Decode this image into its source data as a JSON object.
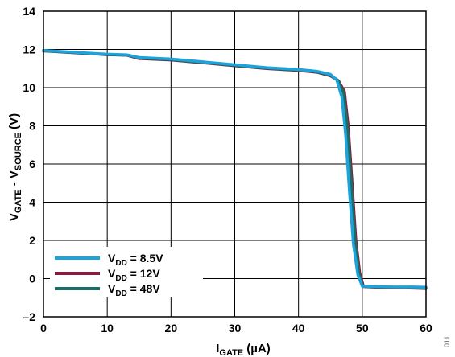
{
  "figure_id": "011",
  "chart_data": {
    "type": "line",
    "xlabel": {
      "main": "I",
      "sub": "GATE",
      "unit": " (µA)"
    },
    "ylabel": {
      "v1": "V",
      "s1": "GATE",
      "mid": " - V",
      "s2": "SOURCE",
      "unit": " (V)"
    },
    "xlim": [
      0,
      60
    ],
    "ylim": [
      -2,
      14
    ],
    "xticks": [
      "0",
      "10",
      "20",
      "30",
      "40",
      "50",
      "60"
    ],
    "yticks": [
      "–2",
      "0",
      "2",
      "4",
      "6",
      "8",
      "10",
      "12",
      "14"
    ],
    "grid": true,
    "legend_position": "bottom-left",
    "series": [
      {
        "name": "V_DD = 8.5V",
        "label": {
          "main": "V",
          "sub": "DD",
          "rest": " = 8.5V"
        },
        "color": "#1ca3dc",
        "x": [
          0,
          5,
          10,
          13,
          15,
          20,
          25,
          30,
          35,
          40,
          43,
          45,
          46,
          46.8,
          47.4,
          48,
          48.6,
          49.3,
          50,
          52,
          55,
          58,
          60
        ],
        "y": [
          11.95,
          11.85,
          11.75,
          11.72,
          11.58,
          11.5,
          11.35,
          11.2,
          11.05,
          10.95,
          10.85,
          10.7,
          10.4,
          9.5,
          7.5,
          4.5,
          1.8,
          0.2,
          -0.4,
          -0.42,
          -0.44,
          -0.44,
          -0.45
        ]
      },
      {
        "name": "V_DD = 12V",
        "label": {
          "main": "V",
          "sub": "DD",
          "rest": " = 12V"
        },
        "color": "#8b1a40",
        "x": [
          0,
          5,
          10,
          13,
          15,
          20,
          25,
          30,
          35,
          40,
          43,
          45,
          46.3,
          47.2,
          47.8,
          48.4,
          49,
          49.6,
          50.2,
          52,
          55,
          58,
          60
        ],
        "y": [
          11.92,
          11.82,
          11.72,
          11.7,
          11.52,
          11.45,
          11.3,
          11.15,
          11.0,
          10.9,
          10.8,
          10.62,
          10.35,
          9.8,
          8.0,
          5.0,
          2.0,
          0.3,
          -0.42,
          -0.45,
          -0.47,
          -0.5,
          -0.52
        ]
      },
      {
        "name": "V_DD = 48V",
        "label": {
          "main": "V",
          "sub": "DD",
          "rest": " = 48V"
        },
        "color": "#1a6e66",
        "x": [
          0,
          5,
          10,
          13,
          15,
          20,
          25,
          30,
          35,
          40,
          43,
          45,
          46.2,
          47.1,
          47.7,
          48.3,
          48.9,
          49.5,
          50.1,
          52,
          55,
          58,
          60
        ],
        "y": [
          11.93,
          11.83,
          11.73,
          11.7,
          11.55,
          11.47,
          11.32,
          11.17,
          11.02,
          10.92,
          10.82,
          10.65,
          10.38,
          9.7,
          7.8,
          4.8,
          1.9,
          0.25,
          -0.41,
          -0.44,
          -0.46,
          -0.48,
          -0.5
        ]
      }
    ]
  }
}
